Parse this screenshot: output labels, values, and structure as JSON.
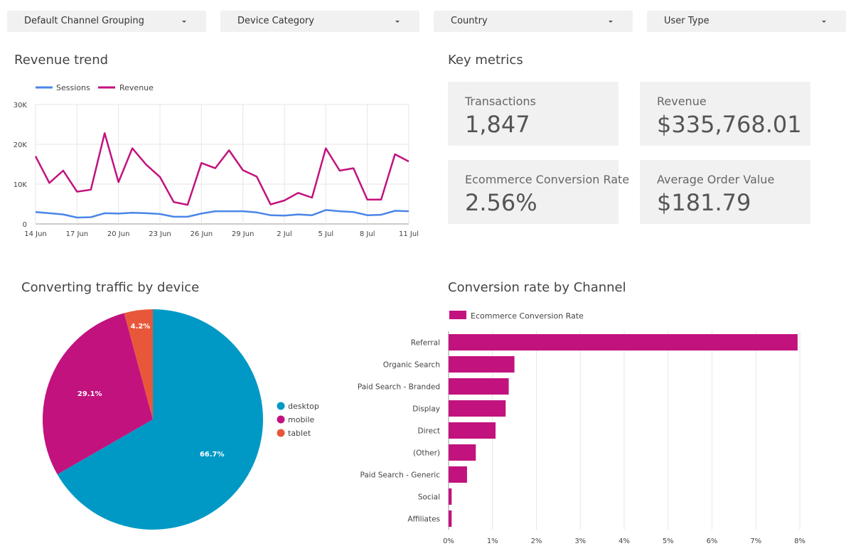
{
  "filters": [
    "Default Channel Grouping",
    "Device Category",
    "Country",
    "User Type"
  ],
  "revenue_trend": {
    "title": "Revenue trend",
    "legend": [
      "Sessions",
      "Revenue"
    ]
  },
  "key_metrics": {
    "title": "Key metrics",
    "cards": [
      {
        "label": "Transactions",
        "value": "1,847"
      },
      {
        "label": "Revenue",
        "value": "$335,768.01"
      },
      {
        "label": "Ecommerce Conversion Rate",
        "value": "2.56%"
      },
      {
        "label": "Average Order Value",
        "value": "$181.79"
      }
    ]
  },
  "device_chart": {
    "title": "Converting traffic by device"
  },
  "channel_chart": {
    "title": "Conversion rate by Channel",
    "legend": "Ecommerce Conversion Rate"
  },
  "colors": {
    "sessions": "#4a86e8",
    "revenue": "#c2127e",
    "desktop": "#0099c6",
    "mobile": "#c2127e",
    "tablet": "#e8573a",
    "bar": "#c2127e"
  },
  "chart_data": [
    {
      "type": "line",
      "title": "Revenue trend",
      "x": [
        "14 Jun",
        "15 Jun",
        "16 Jun",
        "17 Jun",
        "18 Jun",
        "19 Jun",
        "20 Jun",
        "21 Jun",
        "22 Jun",
        "23 Jun",
        "24 Jun",
        "25 Jun",
        "26 Jun",
        "27 Jun",
        "28 Jun",
        "29 Jun",
        "30 Jun",
        "1 Jul",
        "2 Jul",
        "3 Jul",
        "4 Jul",
        "5 Jul",
        "6 Jul",
        "7 Jul",
        "8 Jul",
        "9 Jul",
        "10 Jul",
        "11 Jul"
      ],
      "xticks": [
        "14 Jun",
        "17 Jun",
        "20 Jun",
        "23 Jun",
        "26 Jun",
        "29 Jun",
        "2 Jul",
        "5 Jul",
        "8 Jul",
        "11 Jul"
      ],
      "yticks": [
        "0",
        "10K",
        "20K",
        "30K"
      ],
      "ylim": [
        0,
        30000
      ],
      "series": [
        {
          "name": "Sessions",
          "values": [
            3000,
            2700,
            2400,
            1600,
            1700,
            2700,
            2600,
            2800,
            2700,
            2500,
            1800,
            1800,
            2600,
            3200,
            3200,
            3200,
            2900,
            2200,
            2100,
            2400,
            2200,
            3500,
            3200,
            3000,
            2200,
            2300,
            3300,
            3200
          ]
        },
        {
          "name": "Revenue",
          "values": [
            17000,
            10300,
            13400,
            8100,
            8600,
            22800,
            10500,
            19000,
            14900,
            11800,
            5500,
            4800,
            15300,
            14000,
            18500,
            13500,
            11900,
            4900,
            5900,
            7800,
            6600,
            19000,
            13400,
            14000,
            6100,
            6100,
            17500,
            15700
          ]
        }
      ]
    },
    {
      "type": "pie",
      "title": "Converting traffic by device",
      "labels": [
        "desktop",
        "mobile",
        "tablet"
      ],
      "values": [
        66.7,
        29.1,
        4.2
      ],
      "data_labels": [
        "66.7%",
        "29.1%",
        "4.2%"
      ]
    },
    {
      "type": "bar",
      "title": "Conversion rate by Channel",
      "series_name": "Ecommerce Conversion Rate",
      "categories": [
        "Referral",
        "Organic Search",
        "Paid Search - Branded",
        "Display",
        "Direct",
        "(Other)",
        "Paid Search - Generic",
        "Social",
        "Affiliates"
      ],
      "values": [
        7.95,
        1.5,
        1.37,
        1.3,
        1.07,
        0.62,
        0.42,
        0.07,
        0.07
      ],
      "xticks": [
        "0%",
        "1%",
        "2%",
        "3%",
        "4%",
        "5%",
        "6%",
        "7%",
        "8%"
      ],
      "xlim": [
        0,
        8
      ]
    }
  ]
}
